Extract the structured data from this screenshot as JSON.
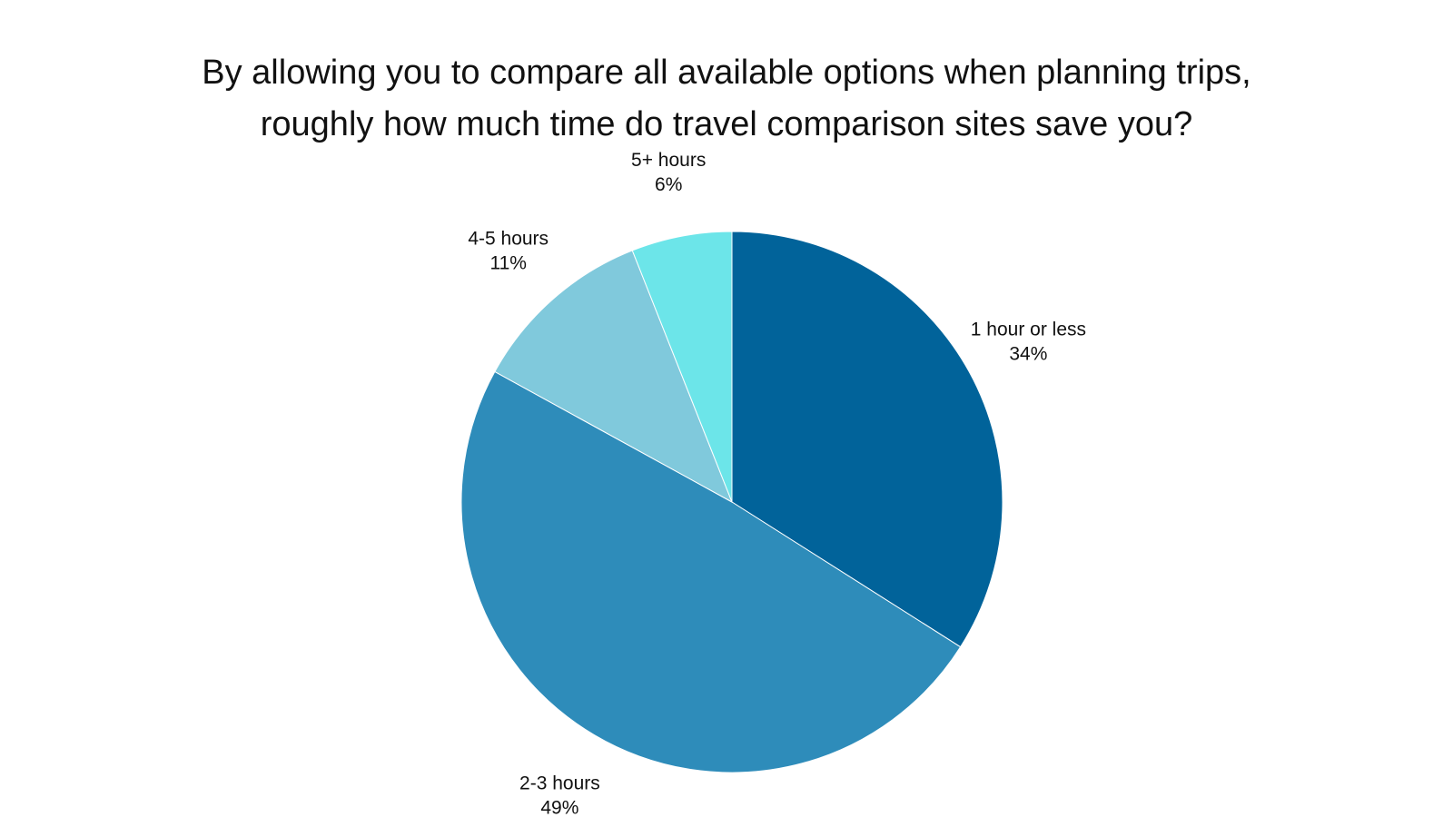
{
  "chart_data": {
    "type": "pie",
    "title_lines": [
      "By allowing you to compare all available options when planning trips,",
      "roughly how much time do travel comparison sites save you?"
    ],
    "start": "12 o'clock, clockwise",
    "slices": [
      {
        "label": "1 hour or less",
        "value": 34,
        "value_label": "34%",
        "color": "#01639a"
      },
      {
        "label": "2-3 hours",
        "value": 49,
        "value_label": "49%",
        "color": "#2e8cba"
      },
      {
        "label": "4-5 hours",
        "value": 11,
        "value_label": "11%",
        "color": "#80c9dc"
      },
      {
        "label": "5+ hours",
        "value": 6,
        "value_label": "6%",
        "color": "#6ce5e9"
      }
    ]
  }
}
